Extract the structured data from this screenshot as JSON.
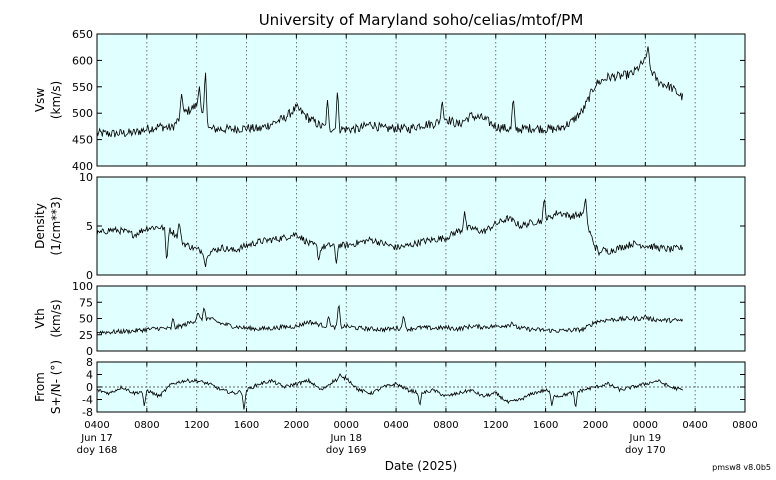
{
  "chart_data": {
    "type": "line",
    "title": "University of Maryland  soho/celias/mtof/PM",
    "xlabel": "Date (2025)",
    "credit": "pmsw8 v8.0b5",
    "x_range_hours": [
      0,
      52
    ],
    "x_ticks": [
      {
        "hour": 0,
        "time": "0400",
        "date": "Jun 17",
        "doy": "doy 168"
      },
      {
        "hour": 4,
        "time": "0800",
        "date": "",
        "doy": ""
      },
      {
        "hour": 8,
        "time": "1200",
        "date": "",
        "doy": ""
      },
      {
        "hour": 12,
        "time": "1600",
        "date": "",
        "doy": ""
      },
      {
        "hour": 16,
        "time": "2000",
        "date": "",
        "doy": ""
      },
      {
        "hour": 20,
        "time": "0000",
        "date": "Jun 18",
        "doy": "doy 169"
      },
      {
        "hour": 24,
        "time": "0400",
        "date": "",
        "doy": ""
      },
      {
        "hour": 28,
        "time": "0800",
        "date": "",
        "doy": ""
      },
      {
        "hour": 32,
        "time": "1200",
        "date": "",
        "doy": ""
      },
      {
        "hour": 36,
        "time": "1600",
        "date": "",
        "doy": ""
      },
      {
        "hour": 40,
        "time": "2000",
        "date": "",
        "doy": ""
      },
      {
        "hour": 44,
        "time": "0000",
        "date": "Jun 19",
        "doy": "doy 170"
      },
      {
        "hour": 48,
        "time": "0400",
        "date": "",
        "doy": ""
      },
      {
        "hour": 52,
        "time": "0800",
        "date": "",
        "doy": ""
      }
    ],
    "panels": [
      {
        "name": "vsw",
        "ylabel": [
          "Vsw",
          "(km/s)"
        ],
        "ylim": [
          400,
          650
        ],
        "yticks": [
          400,
          450,
          500,
          550,
          600,
          650
        ],
        "zero_line": false,
        "x": [
          0,
          1,
          2,
          3,
          4,
          5,
          6,
          7,
          8,
          9,
          10,
          11,
          12,
          13,
          14,
          15,
          16,
          17,
          18,
          19,
          20,
          21,
          22,
          23,
          24,
          25,
          26,
          27,
          28,
          29,
          30,
          31,
          32,
          33,
          34,
          35,
          36,
          37,
          38,
          39,
          40,
          41,
          42,
          43,
          44,
          45,
          46,
          47
        ],
        "y": [
          462,
          461,
          462,
          463,
          470,
          475,
          472,
          500,
          515,
          470,
          470,
          470,
          472,
          470,
          480,
          490,
          510,
          490,
          475,
          470,
          470,
          470,
          480,
          470,
          472,
          470,
          478,
          480,
          490,
          478,
          495,
          490,
          475,
          470,
          470,
          472,
          470,
          470,
          482,
          505,
          555,
          568,
          570,
          575,
          600,
          560,
          550,
          530
        ],
        "spikes": [
          [
            6.8,
            540
          ],
          [
            8.7,
            585
          ],
          [
            8.2,
            555
          ],
          [
            19.3,
            545
          ],
          [
            18.5,
            525
          ],
          [
            27.7,
            525
          ],
          [
            33.4,
            533
          ],
          [
            44.2,
            630
          ],
          [
            44.0,
            605
          ]
        ],
        "x_end": 47.0
      },
      {
        "name": "density",
        "ylabel": [
          "Density",
          "(1/cm**3)"
        ],
        "ylim": [
          0,
          10
        ],
        "yticks": [
          0,
          5,
          10
        ],
        "zero_line": false,
        "x": [
          0,
          1,
          2,
          3,
          4,
          5,
          6,
          7,
          8,
          9,
          10,
          11,
          12,
          13,
          14,
          15,
          16,
          17,
          18,
          19,
          20,
          21,
          22,
          23,
          24,
          25,
          26,
          27,
          28,
          29,
          30,
          31,
          32,
          33,
          34,
          35,
          36,
          37,
          38,
          39,
          40,
          41,
          42,
          43,
          44,
          45,
          46,
          47
        ],
        "y": [
          4.2,
          4.6,
          4.5,
          4.1,
          4.8,
          4.9,
          4.5,
          3.2,
          2.6,
          2.3,
          2.8,
          2.5,
          3.0,
          3.4,
          3.6,
          3.8,
          4.2,
          3.2,
          2.8,
          3.1,
          3.0,
          3.3,
          3.6,
          3.2,
          2.8,
          3.0,
          3.4,
          3.6,
          3.8,
          4.5,
          4.8,
          4.4,
          5.2,
          5.8,
          5.0,
          5.4,
          5.6,
          6.4,
          6.0,
          6.2,
          2.8,
          2.4,
          2.8,
          3.2,
          3.0,
          2.8,
          2.6,
          2.8
        ],
        "spikes": [
          [
            6.6,
            5.5
          ],
          [
            5.6,
            1.2
          ],
          [
            8.7,
            0.7
          ],
          [
            19.2,
            1.0
          ],
          [
            17.8,
            1.4
          ],
          [
            29.5,
            6.5
          ],
          [
            35.9,
            8.0
          ],
          [
            39.2,
            8.0
          ],
          [
            40.3,
            2.0
          ]
        ],
        "x_end": 47.0
      },
      {
        "name": "vth",
        "ylabel": [
          "Vth",
          "(km/s)"
        ],
        "ylim": [
          0,
          100
        ],
        "yticks": [
          0,
          25,
          50,
          75,
          100
        ],
        "zero_line": false,
        "x": [
          0,
          1,
          2,
          3,
          4,
          5,
          6,
          7,
          8,
          9,
          10,
          11,
          12,
          13,
          14,
          15,
          16,
          17,
          18,
          19,
          20,
          21,
          22,
          23,
          24,
          25,
          26,
          27,
          28,
          29,
          30,
          31,
          32,
          33,
          34,
          35,
          36,
          37,
          38,
          39,
          40,
          41,
          42,
          43,
          44,
          45,
          46,
          47
        ],
        "y": [
          29,
          29,
          30,
          31,
          33,
          35,
          34,
          40,
          48,
          50,
          42,
          38,
          35,
          34,
          35,
          37,
          38,
          45,
          40,
          36,
          38,
          35,
          34,
          33,
          35,
          34,
          36,
          35,
          36,
          34,
          38,
          37,
          38,
          40,
          35,
          33,
          32,
          31,
          32,
          33,
          45,
          48,
          49,
          50,
          50,
          48,
          47,
          47
        ],
        "spikes": [
          [
            6.1,
            52
          ],
          [
            8.6,
            68
          ],
          [
            8.1,
            60
          ],
          [
            19.4,
            75
          ],
          [
            18.6,
            55
          ],
          [
            24.6,
            57
          ],
          [
            33.3,
            45
          ],
          [
            44.0,
            55
          ]
        ],
        "x_end": 47.0
      },
      {
        "name": "flow",
        "ylabel": [
          "From",
          "S+/N- (°)"
        ],
        "ylim": [
          -8,
          8
        ],
        "yticks": [
          8,
          4,
          0,
          -4,
          -8
        ],
        "zero_line": true,
        "x": [
          0,
          1,
          2,
          3,
          4,
          5,
          6,
          7,
          8,
          9,
          10,
          11,
          12,
          13,
          14,
          15,
          16,
          17,
          18,
          19,
          20,
          21,
          22,
          23,
          24,
          25,
          26,
          27,
          28,
          29,
          30,
          31,
          32,
          33,
          34,
          35,
          36,
          37,
          38,
          39,
          40,
          41,
          42,
          43,
          44,
          45,
          46,
          47
        ],
        "y": [
          -1,
          -2,
          0,
          -2,
          -1,
          -3,
          1,
          2,
          2,
          1,
          -1,
          -2,
          -1,
          1,
          2,
          0,
          1,
          2,
          -1,
          2,
          3,
          -1,
          -2,
          0,
          1,
          -1,
          -2,
          -1,
          -3,
          -2,
          -1,
          -3,
          -2,
          -5,
          -4,
          -2,
          -1,
          -3,
          -2,
          -1,
          0,
          1,
          -1,
          0,
          1,
          2,
          0,
          -1
        ],
        "spikes": [
          [
            3.8,
            -6.5
          ],
          [
            11.8,
            -7.7
          ],
          [
            36.5,
            -6.0
          ],
          [
            38.4,
            -7.0
          ],
          [
            19.5,
            4.2
          ],
          [
            25.9,
            -6.2
          ]
        ],
        "x_end": 47.0
      }
    ]
  }
}
